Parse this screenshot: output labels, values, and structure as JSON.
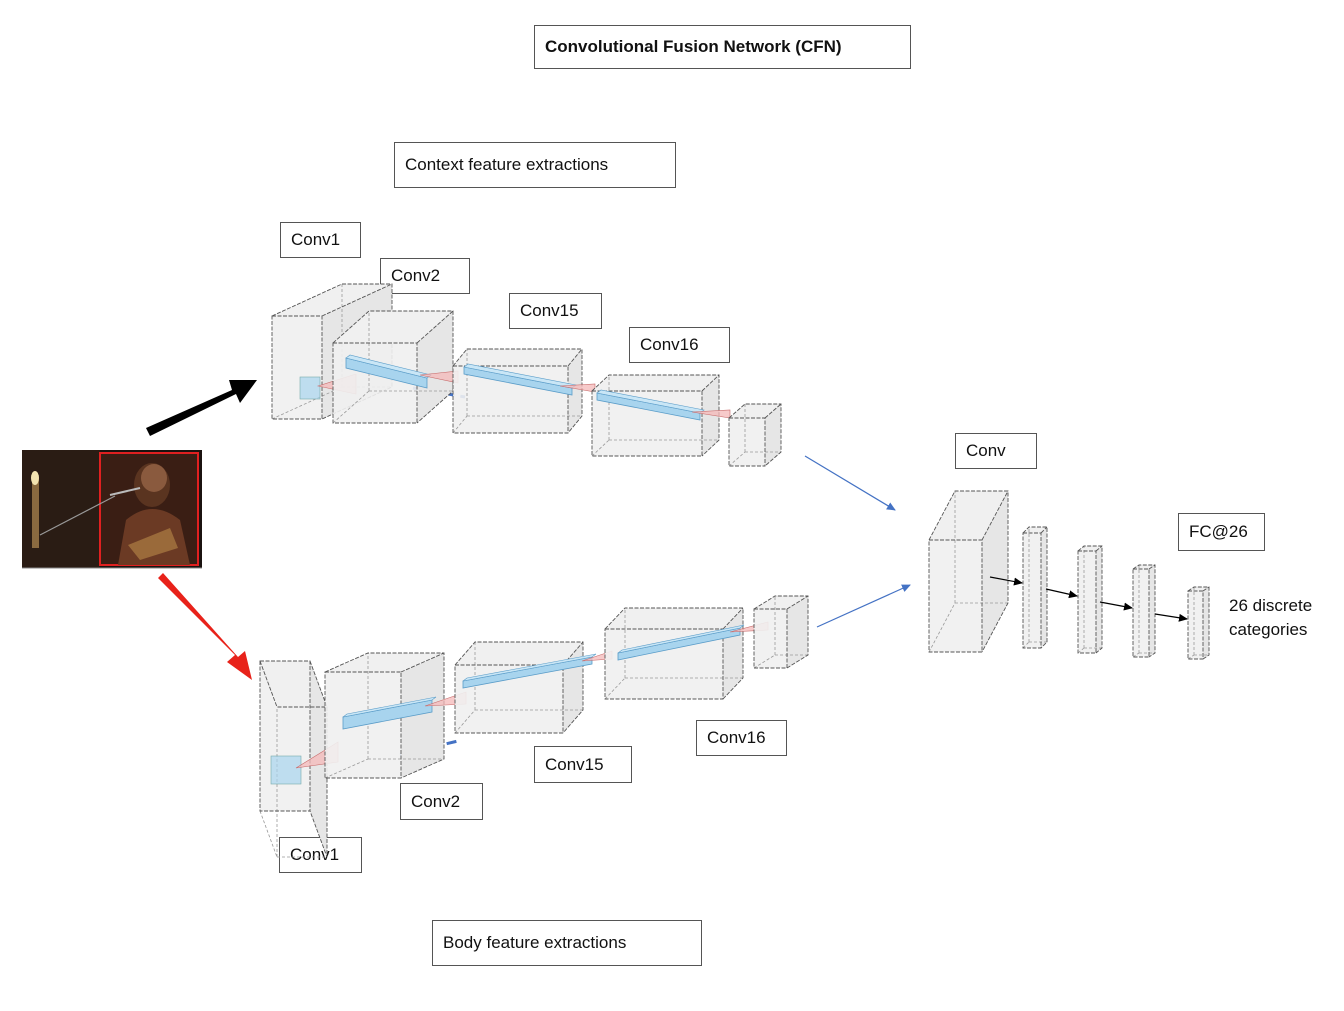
{
  "title": "Convolutional Fusion Network (CFN)",
  "context_branch": {
    "heading": "Context feature extractions",
    "labels": [
      "Conv1",
      "Conv2",
      "Conv15",
      "Conv16"
    ]
  },
  "body_branch": {
    "heading": "Body feature extractions",
    "labels": [
      "Conv1",
      "Conv2",
      "Conv15",
      "Conv16"
    ]
  },
  "fusion": {
    "conv_label": "Conv",
    "fc_label": "FC@26",
    "output_line1": "26 discrete",
    "output_line2": "categories"
  },
  "colors": {
    "context_arrow": "#000000",
    "body_arrow": "#e8221a",
    "connector": "#4472c4",
    "feature_bar": "#a8d4ee",
    "kernel": "#f4b8b8",
    "box_fill": "#f0f0f0"
  }
}
